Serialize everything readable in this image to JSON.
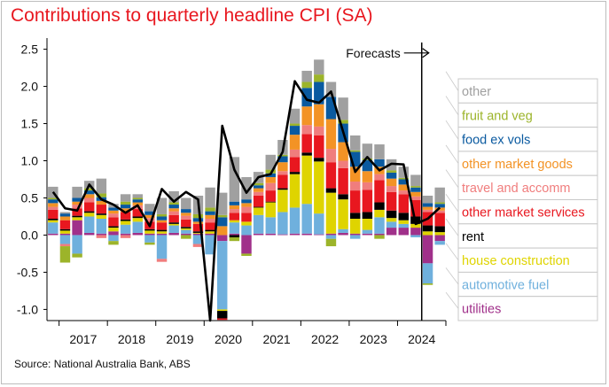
{
  "title": "Contributions to quarterly headline CPI (SA)",
  "source": "Source: National Australia Bank, ABS",
  "annotation": "Forecasts",
  "chart_data": {
    "type": "bar",
    "stacked": true,
    "title": "Contributions to quarterly headline CPI (SA)",
    "xlabel": "",
    "ylabel": "",
    "ylim": [
      -1.15,
      2.65
    ],
    "yticks": [
      -1.0,
      -0.5,
      0.0,
      0.5,
      1.0,
      1.5,
      2.0,
      2.5
    ],
    "ytick_labels": [
      "-1.0",
      "-0.5",
      "0.0",
      "0.5",
      "1.0",
      "1.5",
      "2.0",
      "2.5"
    ],
    "grid": false,
    "legend_placement": "right",
    "x_year_labels": [
      "2017",
      "2018",
      "2019",
      "2020",
      "2021",
      "2022",
      "2023",
      "2024"
    ],
    "categories": [
      "2016Q4",
      "2017Q1",
      "2017Q2",
      "2017Q3",
      "2017Q4",
      "2018Q1",
      "2018Q2",
      "2018Q3",
      "2018Q4",
      "2019Q1",
      "2019Q2",
      "2019Q3",
      "2019Q4",
      "2020Q1",
      "2020Q2",
      "2020Q3",
      "2020Q4",
      "2021Q1",
      "2021Q2",
      "2021Q3",
      "2021Q4",
      "2022Q1",
      "2022Q2",
      "2022Q3",
      "2022Q4",
      "2023Q1",
      "2023Q2",
      "2023Q3",
      "2023Q4",
      "2024Q1",
      "2024Q2",
      "2024Q3",
      "2024Q4"
    ],
    "forecast_start": "2024Q3",
    "series": [
      {
        "name": "utilities",
        "color": "#a0308a",
        "values": [
          0.02,
          0.02,
          0.2,
          0.03,
          0.02,
          0.05,
          0.02,
          0.03,
          0.02,
          0.02,
          0.03,
          0.02,
          0.02,
          0.02,
          -0.08,
          0.02,
          -0.25,
          0.02,
          0.02,
          0.01,
          0.02,
          0.02,
          0.01,
          0.02,
          0.03,
          0.02,
          0.02,
          0.02,
          0.1,
          0.1,
          0.1,
          -0.38,
          -0.08
        ]
      },
      {
        "name": "automotive fuel",
        "color": "#6fb0dd",
        "values": [
          0.15,
          -0.12,
          -0.25,
          0.22,
          0.2,
          -0.08,
          0.12,
          0.15,
          -0.1,
          -0.32,
          0.1,
          0.05,
          -0.12,
          -0.26,
          -0.92,
          0.15,
          0.13,
          0.25,
          0.22,
          0.3,
          0.35,
          0.4,
          0.28,
          -0.05,
          0.05,
          -0.05,
          0.05,
          0.22,
          0.08,
          0.05,
          -0.03,
          -0.27,
          -0.05
        ]
      },
      {
        "name": "house construction",
        "color": "#dfd400",
        "values": [
          0.03,
          0.04,
          0.04,
          0.05,
          0.05,
          0.05,
          0.05,
          0.05,
          0.04,
          0.03,
          0.02,
          0.02,
          0.01,
          0.03,
          -0.02,
          0.03,
          0.05,
          0.1,
          0.2,
          0.3,
          0.45,
          0.65,
          0.7,
          0.55,
          0.4,
          0.2,
          0.15,
          0.1,
          0.05,
          0.05,
          0.05,
          0.05,
          0.04
        ]
      },
      {
        "name": "rent",
        "color": "#000000",
        "values": [
          0.02,
          0.02,
          0.02,
          0.02,
          0.02,
          0.02,
          0.02,
          0.02,
          0.02,
          0.02,
          0.02,
          0.02,
          0.02,
          0.02,
          -0.1,
          -0.03,
          0.0,
          0.01,
          0.01,
          0.02,
          0.03,
          0.04,
          0.05,
          0.06,
          0.07,
          0.08,
          0.09,
          0.1,
          0.1,
          0.1,
          0.1,
          0.08,
          0.08
        ]
      },
      {
        "name": "other market services",
        "color": "#e8171f",
        "values": [
          0.12,
          0.12,
          0.1,
          0.12,
          0.12,
          0.12,
          0.1,
          0.1,
          0.1,
          0.1,
          0.1,
          0.1,
          0.1,
          0.1,
          -0.02,
          0.1,
          0.12,
          0.15,
          0.15,
          0.18,
          0.2,
          0.25,
          0.3,
          0.35,
          0.35,
          0.3,
          0.3,
          0.3,
          0.25,
          0.25,
          0.22,
          0.18,
          0.18
        ]
      },
      {
        "name": "travel and accomm",
        "color": "#f07d7d",
        "values": [
          0.04,
          -0.03,
          0.05,
          0.06,
          -0.04,
          0.05,
          -0.04,
          0.05,
          0.05,
          -0.04,
          0.05,
          0.05,
          -0.04,
          0.05,
          -0.1,
          0.05,
          0.08,
          0.05,
          0.1,
          0.05,
          0.1,
          0.12,
          0.12,
          0.18,
          0.1,
          0.12,
          0.1,
          0.08,
          0.08,
          0.05,
          0.05,
          0.03,
          0.03
        ]
      },
      {
        "name": "other market goods",
        "color": "#f39325",
        "values": [
          0.05,
          0.05,
          0.04,
          0.05,
          0.05,
          0.04,
          0.05,
          0.04,
          0.04,
          0.03,
          0.04,
          0.04,
          0.03,
          0.05,
          0.12,
          0.05,
          0.05,
          0.05,
          0.08,
          0.12,
          0.2,
          0.25,
          0.3,
          0.4,
          0.25,
          0.2,
          0.15,
          0.1,
          0.1,
          0.08,
          0.06,
          0.04,
          0.04
        ]
      },
      {
        "name": "food ex vols",
        "color": "#0a5aa0",
        "values": [
          0.05,
          0.04,
          0.05,
          0.05,
          0.05,
          0.04,
          0.05,
          0.04,
          0.05,
          0.05,
          0.05,
          0.05,
          0.05,
          0.05,
          0.12,
          0.05,
          0.05,
          0.04,
          0.05,
          0.08,
          0.12,
          0.25,
          0.3,
          0.3,
          0.25,
          0.2,
          0.15,
          0.1,
          0.08,
          0.07,
          0.06,
          0.05,
          0.05
        ]
      },
      {
        "name": "fruit and veg",
        "color": "#9cb42a",
        "values": [
          0.02,
          -0.22,
          -0.05,
          0.03,
          0.05,
          -0.05,
          0.04,
          0.02,
          -0.03,
          0.03,
          0.03,
          -0.05,
          0.05,
          0.05,
          0.03,
          -0.05,
          -0.03,
          0.03,
          0.05,
          0.02,
          0.03,
          0.08,
          0.1,
          -0.1,
          0.05,
          0.02,
          0.02,
          -0.05,
          0.03,
          0.02,
          0.02,
          -0.02,
          0.02
        ]
      },
      {
        "name": "other",
        "color": "#a0a0a0",
        "values": [
          0.15,
          0.02,
          0.15,
          0.1,
          0.2,
          0.05,
          0.1,
          0.05,
          0.1,
          0.22,
          0.15,
          0.15,
          0.25,
          0.27,
          0.3,
          0.6,
          0.3,
          0.15,
          0.2,
          0.2,
          0.2,
          0.15,
          0.2,
          0.2,
          0.3,
          0.2,
          0.2,
          0.2,
          0.15,
          0.15,
          0.15,
          0.1,
          0.2
        ]
      }
    ],
    "total_line": {
      "name": "headline CPI",
      "color": "#000000",
      "values": [
        0.58,
        0.36,
        0.33,
        0.68,
        0.48,
        0.41,
        0.3,
        0.4,
        0.12,
        0.62,
        0.45,
        0.58,
        0.48,
        -1.15,
        1.47,
        0.88,
        0.57,
        0.78,
        0.82,
        1.12,
        2.07,
        1.82,
        1.78,
        1.93,
        1.39,
        0.85,
        1.05,
        0.87,
        0.96,
        0.95,
        0.15,
        0.22,
        0.37
      ]
    },
    "legend": [
      {
        "label": "other",
        "color": "#a0a0a0"
      },
      {
        "label": "fruit and veg",
        "color": "#9cb42a"
      },
      {
        "label": "food ex vols",
        "color": "#0a5aa0"
      },
      {
        "label": "other market goods",
        "color": "#f39325"
      },
      {
        "label": "travel and accomm",
        "color": "#f07d7d"
      },
      {
        "label": "other market services",
        "color": "#e8171f"
      },
      {
        "label": "rent",
        "color": "#000000"
      },
      {
        "label": "house construction",
        "color": "#dfd400"
      },
      {
        "label": "automotive fuel",
        "color": "#6fb0dd"
      },
      {
        "label": "utilities",
        "color": "#a0308a"
      }
    ]
  }
}
